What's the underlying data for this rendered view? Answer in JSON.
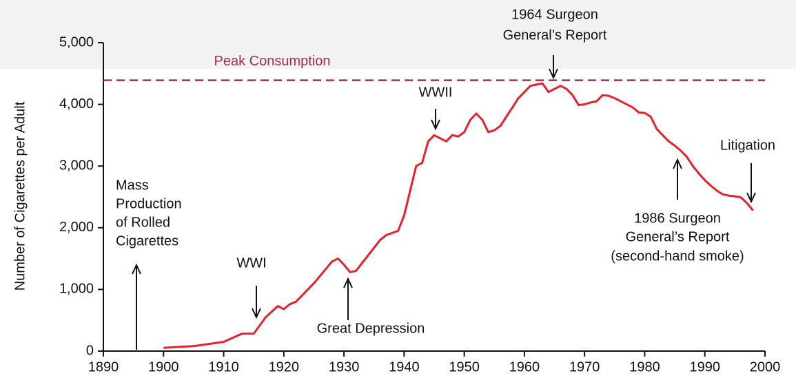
{
  "chart_data": {
    "type": "line",
    "y_label": "Number of Cigarettes per Adult",
    "xlim": [
      1890,
      2000
    ],
    "xticks": [
      1890,
      1900,
      1910,
      1920,
      1930,
      1940,
      1950,
      1960,
      1970,
      1980,
      1990,
      2000
    ],
    "ylim": [
      0,
      5000
    ],
    "yticks": [
      0,
      {
        "value": 1000,
        "label": "1,000"
      },
      {
        "value": 2000,
        "label": "2,000"
      },
      {
        "value": 3000,
        "label": "3,000"
      },
      {
        "value": 4000,
        "label": "4,000"
      },
      {
        "value": 5000,
        "label": "5,000"
      }
    ],
    "reference_line": {
      "label": "Peak Consumption",
      "value": 4390,
      "color": "#a0304a"
    },
    "series": [
      {
        "color": "#e8202a",
        "x": [
          1900,
          1905,
          1910,
          1913,
          1915,
          1917,
          1919,
          1920,
          1921,
          1922,
          1925,
          1928,
          1929,
          1930,
          1931,
          1932,
          1934,
          1936,
          1937,
          1939,
          1940,
          1941,
          1942,
          1943,
          1944,
          1945,
          1946,
          1947,
          1948,
          1949,
          1950,
          1951,
          1952,
          1953,
          1954,
          1955,
          1956,
          1957,
          1958,
          1959,
          1960,
          1961,
          1962,
          1963,
          1964,
          1965,
          1966,
          1967,
          1968,
          1969,
          1970,
          1971,
          1972,
          1973,
          1974,
          1975,
          1976,
          1977,
          1978,
          1979,
          1980,
          1981,
          1982,
          1983,
          1984,
          1985,
          1986,
          1987,
          1988,
          1989,
          1990,
          1991,
          1992,
          1993,
          1994,
          1995,
          1996,
          1997,
          1998
        ],
        "values": [
          54,
          80,
          150,
          280,
          285,
          550,
          730,
          680,
          760,
          800,
          1100,
          1450,
          1500,
          1400,
          1280,
          1300,
          1550,
          1800,
          1880,
          1950,
          2200,
          2600,
          3000,
          3050,
          3400,
          3500,
          3450,
          3400,
          3500,
          3480,
          3550,
          3750,
          3850,
          3750,
          3550,
          3580,
          3650,
          3800,
          3950,
          4100,
          4200,
          4300,
          4320,
          4340,
          4200,
          4250,
          4300,
          4250,
          4150,
          3990,
          4000,
          4030,
          4050,
          4150,
          4140,
          4100,
          4050,
          4000,
          3950,
          3870,
          3860,
          3800,
          3600,
          3500,
          3400,
          3330,
          3250,
          3150,
          3000,
          2880,
          2770,
          2680,
          2600,
          2540,
          2520,
          2510,
          2490,
          2400,
          2280
        ]
      }
    ],
    "annotations": [
      {
        "lines": [
          "Mass",
          "Production",
          "of Rolled",
          "Cigarettes"
        ]
      },
      {
        "lines": [
          "WWI"
        ]
      },
      {
        "lines": [
          "Great Depression"
        ]
      },
      {
        "lines": [
          "WWII"
        ]
      },
      {
        "lines": [
          "1964 Surgeon",
          "General’s Report"
        ]
      },
      {
        "lines": [
          "Litigation"
        ]
      },
      {
        "lines": [
          "1986 Surgeon",
          "General’s Report",
          "(second-hand smoke)"
        ]
      }
    ]
  }
}
